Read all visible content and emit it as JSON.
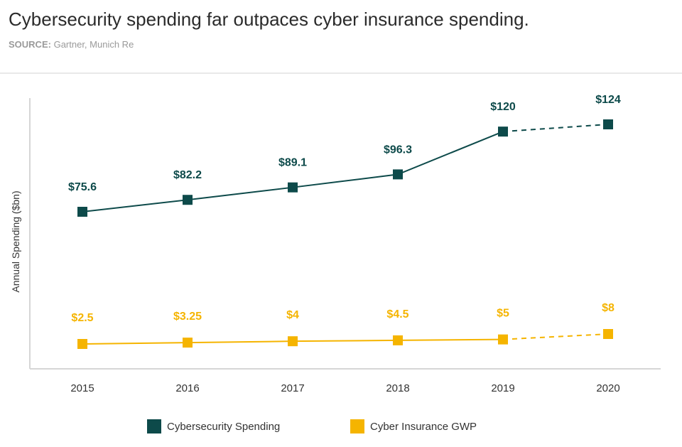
{
  "header": {
    "title": "Cybersecurity spending far outpaces cyber insurance spending.",
    "source_label": "SOURCE:",
    "source_text": "Gartner, Munich Re"
  },
  "chart_data": {
    "type": "line",
    "title": "Cybersecurity spending far outpaces cyber insurance spending.",
    "xlabel": "",
    "ylabel": "Annual Spending ($bn)",
    "categories": [
      "2015",
      "2016",
      "2017",
      "2018",
      "2019",
      "2020"
    ],
    "series": [
      {
        "name": "Cybersecurity Spending",
        "color": "#0d4a4a",
        "values": [
          75.6,
          82.2,
          89.1,
          96.3,
          120,
          124
        ],
        "labels": [
          "$75.6",
          "$82.2",
          "$89.1",
          "$96.3",
          "$120",
          "$124"
        ],
        "projected_from_index": 4
      },
      {
        "name": "Cyber Insurance GWP",
        "color": "#f5b400",
        "values": [
          2.5,
          3.25,
          4,
          4.5,
          5,
          8
        ],
        "labels": [
          "$2.5",
          "$3.25",
          "$4",
          "$4.5",
          "$5",
          "$8"
        ],
        "projected_from_index": 4
      }
    ],
    "legend_position": "bottom",
    "grid": false
  }
}
